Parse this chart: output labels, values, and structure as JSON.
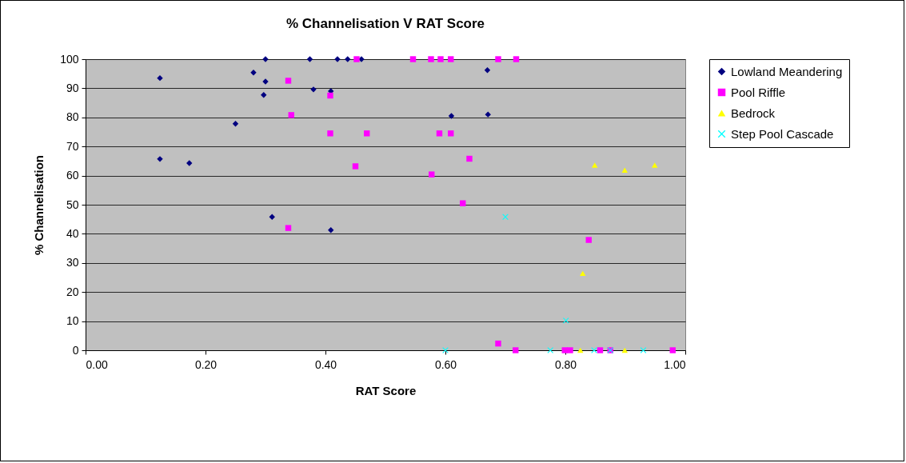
{
  "chart_data": {
    "type": "scatter",
    "title": "% Channelisation V RAT Score",
    "xlabel": "RAT Score",
    "ylabel": "% Channelisation",
    "xlim": [
      0,
      1
    ],
    "xticks": [
      {
        "value": 0,
        "label": "0.00"
      },
      {
        "value": 0.2,
        "label": "0.20"
      },
      {
        "value": 0.4,
        "label": "0.40"
      },
      {
        "value": 0.6,
        "label": "0.60"
      },
      {
        "value": 0.8,
        "label": "0.80"
      },
      {
        "value": 1,
        "label": "1.00"
      }
    ],
    "ylim": [
      0,
      100
    ],
    "yticks": [
      0,
      10,
      20,
      30,
      40,
      50,
      60,
      70,
      80,
      90,
      100
    ],
    "grid": "y",
    "legend": "right",
    "series": [
      {
        "name": "Lowland Meandering",
        "color": "#000080",
        "marker": "diamond",
        "x": [
          0.124,
          0.124,
          0.173,
          0.25,
          0.28,
          0.3,
          0.3,
          0.297,
          0.311,
          0.374,
          0.38,
          0.409,
          0.409,
          0.42,
          0.437,
          0.46,
          0.61,
          0.67,
          0.671
        ],
        "values": [
          93.5,
          65.7,
          64.3,
          77.8,
          95.4,
          100,
          92.3,
          87.7,
          45.8,
          100,
          89.6,
          89,
          41.3,
          100,
          100,
          100,
          80.5,
          96.2,
          81
        ]
      },
      {
        "name": "Pool Riffle",
        "color": "#ff00ff",
        "marker": "square",
        "x": [
          0.338,
          0.408,
          0.343,
          0.408,
          0.469,
          0.45,
          0.338,
          0.452,
          0.546,
          0.576,
          0.592,
          0.609,
          0.688,
          0.718,
          0.59,
          0.609,
          0.64,
          0.577,
          0.629,
          0.839,
          0.688,
          0.717,
          0.799,
          0.808,
          0.858,
          0.875,
          0.979
        ],
        "values": [
          92.6,
          87.5,
          80.8,
          74.5,
          74.5,
          63.2,
          42,
          100,
          100,
          100,
          100,
          100,
          100,
          100,
          74.5,
          74.5,
          65.8,
          60.4,
          50.5,
          37.9,
          2.3,
          0,
          0,
          0,
          0,
          0,
          0
        ]
      },
      {
        "name": "Bedrock",
        "color": "#ffff00",
        "marker": "triangle",
        "x": [
          0.849,
          0.899,
          0.949,
          0.829,
          0.825,
          0.899
        ],
        "values": [
          63.6,
          61.9,
          63.6,
          26.4,
          0,
          0
        ]
      },
      {
        "name": "Step Pool Cascade",
        "color": "#00ffff",
        "marker": "cross",
        "x": [
          0.7,
          0.801,
          0.6,
          0.775,
          0.848,
          0.875,
          0.93
        ],
        "values": [
          45.8,
          10.2,
          0,
          0,
          0,
          0,
          0
        ]
      }
    ]
  }
}
